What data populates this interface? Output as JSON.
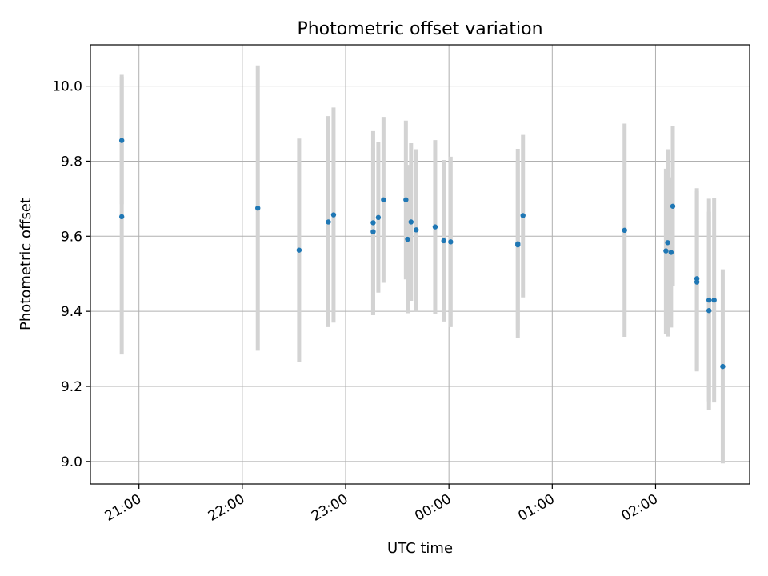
{
  "chart_data": {
    "type": "scatter",
    "title": "Photometric offset variation",
    "xlabel": "UTC time",
    "ylabel": "Photometric offset",
    "x_range_hours": [
      20.53,
      26.91
    ],
    "ylim": [
      8.94,
      10.11
    ],
    "xticks": [
      {
        "label": "21:00",
        "hour": 21
      },
      {
        "label": "22:00",
        "hour": 22
      },
      {
        "label": "23:00",
        "hour": 23
      },
      {
        "label": "00:00",
        "hour": 24
      },
      {
        "label": "01:00",
        "hour": 25
      },
      {
        "label": "02:00",
        "hour": 26
      }
    ],
    "yticks": [
      {
        "label": "9.0",
        "value": 9.0
      },
      {
        "label": "9.2",
        "value": 9.2
      },
      {
        "label": "9.4",
        "value": 9.4
      },
      {
        "label": "9.6",
        "value": 9.6
      },
      {
        "label": "9.8",
        "value": 9.8
      },
      {
        "label": "10.0",
        "value": 10.0
      }
    ],
    "grid": true,
    "marker_color": "#1f77b4",
    "errorbar_color": "#d3d3d3",
    "points": [
      {
        "time": "20:50",
        "y": 9.855,
        "ylo": 9.685,
        "yhi": 10.025
      },
      {
        "time": "20:50",
        "y": 9.652,
        "ylo": 9.285,
        "yhi": 10.03
      },
      {
        "time": "22:09",
        "y": 9.675,
        "ylo": 9.295,
        "yhi": 10.055
      },
      {
        "time": "22:33",
        "y": 9.563,
        "ylo": 9.265,
        "yhi": 9.86
      },
      {
        "time": "22:50",
        "y": 9.638,
        "ylo": 9.358,
        "yhi": 9.92
      },
      {
        "time": "22:53",
        "y": 9.657,
        "ylo": 9.37,
        "yhi": 9.943
      },
      {
        "time": "23:16",
        "y": 9.636,
        "ylo": 9.39,
        "yhi": 9.88
      },
      {
        "time": "23:16",
        "y": 9.612,
        "ylo": 9.39,
        "yhi": 9.835
      },
      {
        "time": "23:19",
        "y": 9.65,
        "ylo": 9.45,
        "yhi": 9.85
      },
      {
        "time": "23:22",
        "y": 9.697,
        "ylo": 9.476,
        "yhi": 9.918
      },
      {
        "time": "23:35",
        "y": 9.697,
        "ylo": 9.485,
        "yhi": 9.908
      },
      {
        "time": "23:36",
        "y": 9.592,
        "ylo": 9.395,
        "yhi": 9.79
      },
      {
        "time": "23:38",
        "y": 9.638,
        "ylo": 9.428,
        "yhi": 9.848
      },
      {
        "time": "23:41",
        "y": 9.617,
        "ylo": 9.4,
        "yhi": 9.832
      },
      {
        "time": "23:52",
        "y": 9.625,
        "ylo": 9.392,
        "yhi": 9.856
      },
      {
        "time": "23:57",
        "y": 9.588,
        "ylo": 9.373,
        "yhi": 9.803
      },
      {
        "time": "00:01",
        "y": 9.585,
        "ylo": 9.358,
        "yhi": 9.812
      },
      {
        "time": "00:40",
        "y": 9.577,
        "ylo": 9.33,
        "yhi": 9.833
      },
      {
        "time": "00:40",
        "y": 9.58,
        "ylo": 9.35,
        "yhi": 9.8
      },
      {
        "time": "00:43",
        "y": 9.655,
        "ylo": 9.437,
        "yhi": 9.87
      },
      {
        "time": "01:42",
        "y": 9.616,
        "ylo": 9.332,
        "yhi": 9.9
      },
      {
        "time": "02:06",
        "y": 9.561,
        "ylo": 9.34,
        "yhi": 9.78
      },
      {
        "time": "02:07",
        "y": 9.583,
        "ylo": 9.333,
        "yhi": 9.832
      },
      {
        "time": "02:09",
        "y": 9.557,
        "ylo": 9.357,
        "yhi": 9.757
      },
      {
        "time": "02:10",
        "y": 9.68,
        "ylo": 9.468,
        "yhi": 9.893
      },
      {
        "time": "02:24",
        "y": 9.487,
        "ylo": 9.243,
        "yhi": 9.728
      },
      {
        "time": "02:24",
        "y": 9.478,
        "ylo": 9.24,
        "yhi": 9.72
      },
      {
        "time": "02:31",
        "y": 9.43,
        "ylo": 9.16,
        "yhi": 9.7
      },
      {
        "time": "02:31",
        "y": 9.402,
        "ylo": 9.138,
        "yhi": 9.665
      },
      {
        "time": "02:34",
        "y": 9.43,
        "ylo": 9.157,
        "yhi": 9.703
      },
      {
        "time": "02:39",
        "y": 9.253,
        "ylo": 8.995,
        "yhi": 9.512
      }
    ]
  }
}
